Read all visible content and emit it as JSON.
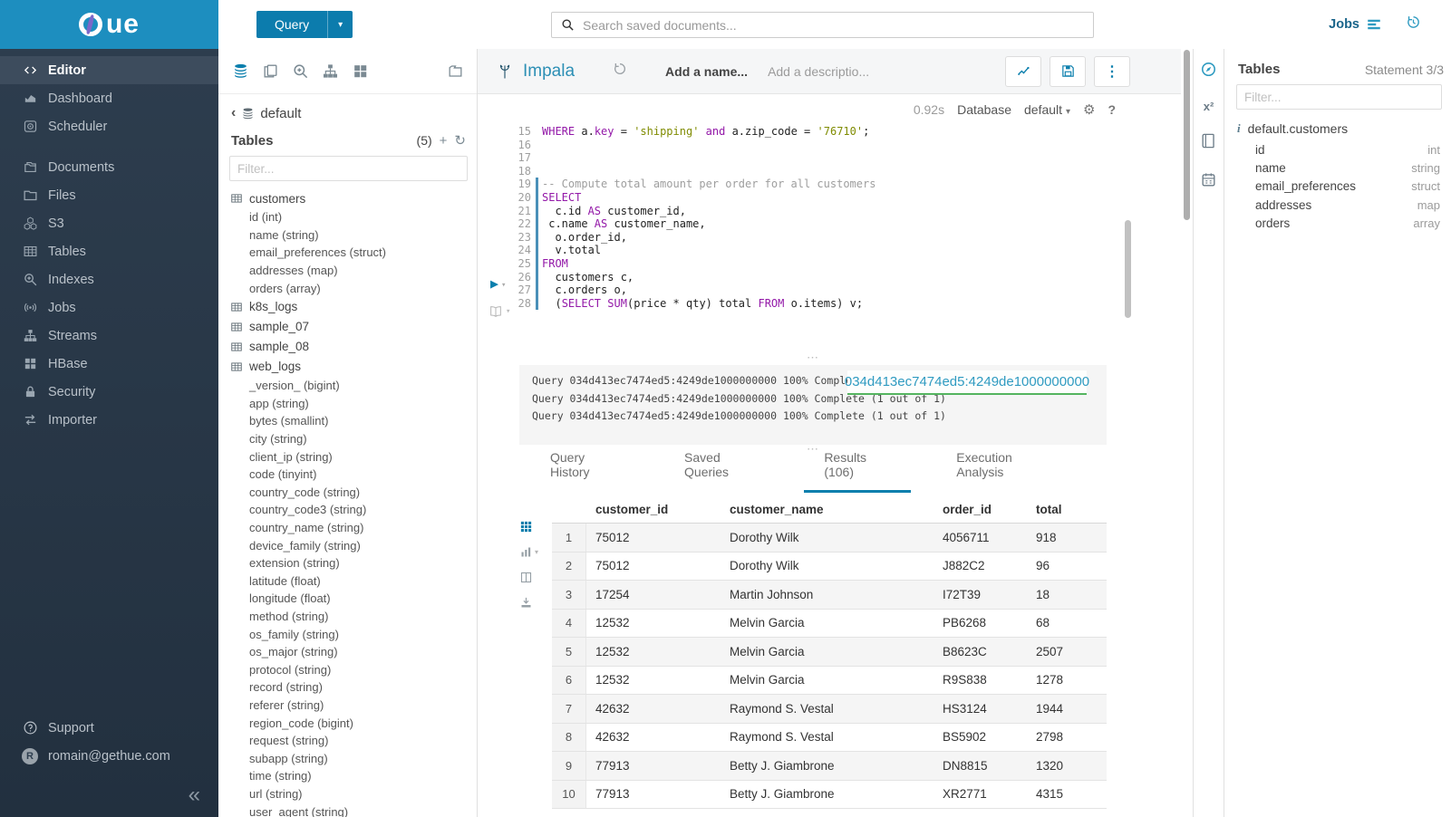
{
  "brand": {
    "logo_text": "ue"
  },
  "icons": {
    "collapse": "«",
    "chevron_left": "‹",
    "caret_down": "▾",
    "kebab": "⋮",
    "ellipsis": "⋯",
    "gear": "⚙",
    "help": "?",
    "plus": "+",
    "refresh": "↻",
    "play": "▶",
    "superscript": "x²",
    "info": "i"
  },
  "topbar": {
    "query_label": "Query",
    "search_placeholder": "Search saved documents...",
    "jobs_label": "Jobs"
  },
  "sidebar": {
    "items": [
      {
        "id": "editor",
        "label": "Editor",
        "active": true,
        "gap": false
      },
      {
        "id": "dashboard",
        "label": "Dashboard",
        "active": false,
        "gap": false
      },
      {
        "id": "scheduler",
        "label": "Scheduler",
        "active": false,
        "gap": false
      },
      {
        "id": "documents",
        "label": "Documents",
        "active": false,
        "gap": true
      },
      {
        "id": "files",
        "label": "Files",
        "active": false,
        "gap": false
      },
      {
        "id": "s3",
        "label": "S3",
        "active": false,
        "gap": false
      },
      {
        "id": "tables",
        "label": "Tables",
        "active": false,
        "gap": false
      },
      {
        "id": "indexes",
        "label": "Indexes",
        "active": false,
        "gap": false
      },
      {
        "id": "jobs",
        "label": "Jobs",
        "active": false,
        "gap": false
      },
      {
        "id": "streams",
        "label": "Streams",
        "active": false,
        "gap": false
      },
      {
        "id": "hbase",
        "label": "HBase",
        "active": false,
        "gap": false
      },
      {
        "id": "security",
        "label": "Security",
        "active": false,
        "gap": false
      },
      {
        "id": "importer",
        "label": "Importer",
        "active": false,
        "gap": false
      }
    ],
    "footer": {
      "support_label": "Support",
      "user_email": "romain@gethue.com",
      "avatar_initial": "R"
    }
  },
  "left_assist": {
    "breadcrumb": "default",
    "tables_label": "Tables",
    "count": "(5)",
    "filter_placeholder": "Filter...",
    "tree": [
      {
        "name": "customers",
        "columns": [
          "id (int)",
          "name (string)",
          "email_preferences (struct)",
          "addresses (map)",
          "orders (array)"
        ]
      },
      {
        "name": "k8s_logs",
        "columns": []
      },
      {
        "name": "sample_07",
        "columns": []
      },
      {
        "name": "sample_08",
        "columns": []
      },
      {
        "name": "web_logs",
        "columns": [
          "_version_ (bigint)",
          "app (string)",
          "bytes (smallint)",
          "city (string)",
          "client_ip (string)",
          "code (tinyint)",
          "country_code (string)",
          "country_code3 (string)",
          "country_name (string)",
          "device_family (string)",
          "extension (string)",
          "latitude (float)",
          "longitude (float)",
          "method (string)",
          "os_family (string)",
          "os_major (string)",
          "protocol (string)",
          "record (string)",
          "referer (string)",
          "region_code (bigint)",
          "request (string)",
          "subapp (string)",
          "time (string)",
          "url (string)",
          "user_agent (string)"
        ]
      }
    ]
  },
  "editor": {
    "engine": "Impala",
    "name_placeholder": "Add a name...",
    "desc_placeholder": "Add a descriptio...",
    "exec_time": "0.92s",
    "database_label": "Database",
    "database_value": "default",
    "code_lines": [
      {
        "n": 15,
        "stmt": false,
        "seg": [
          {
            "t": "k",
            "v": "WHERE"
          },
          {
            "t": "p",
            "v": " a."
          },
          {
            "t": "k",
            "v": "key"
          },
          {
            "t": "p",
            "v": " = "
          },
          {
            "t": "s",
            "v": "'shipping'"
          },
          {
            "t": "p",
            "v": " "
          },
          {
            "t": "k",
            "v": "and"
          },
          {
            "t": "p",
            "v": " a.zip_code = "
          },
          {
            "t": "s",
            "v": "'76710'"
          },
          {
            "t": "p",
            "v": ";"
          }
        ]
      },
      {
        "n": 16,
        "stmt": false,
        "seg": []
      },
      {
        "n": 17,
        "stmt": false,
        "seg": []
      },
      {
        "n": 18,
        "stmt": false,
        "seg": []
      },
      {
        "n": 19,
        "stmt": true,
        "seg": [
          {
            "t": "c",
            "v": "-- Compute total amount per order for all customers"
          }
        ]
      },
      {
        "n": 20,
        "stmt": true,
        "seg": [
          {
            "t": "k",
            "v": "SELECT"
          }
        ]
      },
      {
        "n": 21,
        "stmt": true,
        "seg": [
          {
            "t": "p",
            "v": "  c.id "
          },
          {
            "t": "k",
            "v": "AS"
          },
          {
            "t": "p",
            "v": " customer_id,"
          }
        ]
      },
      {
        "n": 22,
        "stmt": true,
        "seg": [
          {
            "t": "p",
            "v": " c.name "
          },
          {
            "t": "k",
            "v": "AS"
          },
          {
            "t": "p",
            "v": " customer_name,"
          }
        ]
      },
      {
        "n": 23,
        "stmt": true,
        "seg": [
          {
            "t": "p",
            "v": "  o.order_id,"
          }
        ]
      },
      {
        "n": 24,
        "stmt": true,
        "seg": [
          {
            "t": "p",
            "v": "  v.total"
          }
        ]
      },
      {
        "n": 25,
        "stmt": true,
        "seg": [
          {
            "t": "k",
            "v": "FROM"
          }
        ]
      },
      {
        "n": 26,
        "stmt": true,
        "seg": [
          {
            "t": "p",
            "v": "  customers c,"
          }
        ]
      },
      {
        "n": 27,
        "stmt": true,
        "seg": [
          {
            "t": "p",
            "v": "  c.orders o,"
          }
        ]
      },
      {
        "n": 28,
        "stmt": true,
        "seg": [
          {
            "t": "p",
            "v": "  ("
          },
          {
            "t": "k",
            "v": "SELECT"
          },
          {
            "t": "p",
            "v": " "
          },
          {
            "t": "k",
            "v": "SUM"
          },
          {
            "t": "p",
            "v": "(price * qty) total "
          },
          {
            "t": "k",
            "v": "FROM"
          },
          {
            "t": "p",
            "v": " o.items) v;"
          }
        ]
      }
    ]
  },
  "logs": {
    "lines": [
      "Query 034d413ec7474ed5:4249de1000000000 100% Complete (1 out of 1)",
      "Query 034d413ec7474ed5:4249de1000000000 100% Complete (1 out of 1)",
      "Query 034d413ec7474ed5:4249de1000000000 100% Complete (1 out of 1)"
    ],
    "query_id_tooltip": "034d413ec7474ed5:4249de1000000000"
  },
  "result_tabs": [
    {
      "label": "Query History",
      "active": false
    },
    {
      "label": "Saved Queries",
      "active": false
    },
    {
      "label": "Results (106)",
      "active": true
    },
    {
      "label": "Execution Analysis",
      "active": false
    }
  ],
  "results": {
    "columns": [
      "customer_id",
      "customer_name",
      "order_id",
      "total"
    ],
    "rows": [
      [
        "75012",
        "Dorothy Wilk",
        "4056711",
        "918"
      ],
      [
        "75012",
        "Dorothy Wilk",
        "J882C2",
        "96"
      ],
      [
        "17254",
        "Martin Johnson",
        "I72T39",
        "18"
      ],
      [
        "12532",
        "Melvin Garcia",
        "PB6268",
        "68"
      ],
      [
        "12532",
        "Melvin Garcia",
        "B8623C",
        "2507"
      ],
      [
        "12532",
        "Melvin Garcia",
        "R9S838",
        "1278"
      ],
      [
        "42632",
        "Raymond S. Vestal",
        "HS3124",
        "1944"
      ],
      [
        "42632",
        "Raymond S. Vestal",
        "BS5902",
        "2798"
      ],
      [
        "77913",
        "Betty J. Giambrone",
        "DN8815",
        "1320"
      ],
      [
        "77913",
        "Betty J. Giambrone",
        "XR2771",
        "4315"
      ]
    ]
  },
  "right_assist": {
    "title": "Tables",
    "statement": "Statement 3/3",
    "filter_placeholder": "Filter...",
    "table_name": "default.customers",
    "columns": [
      {
        "name": "id",
        "type": "int"
      },
      {
        "name": "name",
        "type": "string"
      },
      {
        "name": "email_preferences",
        "type": "struct"
      },
      {
        "name": "addresses",
        "type": "map"
      },
      {
        "name": "orders",
        "type": "array"
      }
    ]
  },
  "colors": {
    "banner": "#1d8ebf",
    "accent": "#0b7fad",
    "keyword": "#9318a8",
    "string": "#7f8b00",
    "comment": "#9e9e9e",
    "tooltip_underline": "#54b45f"
  }
}
